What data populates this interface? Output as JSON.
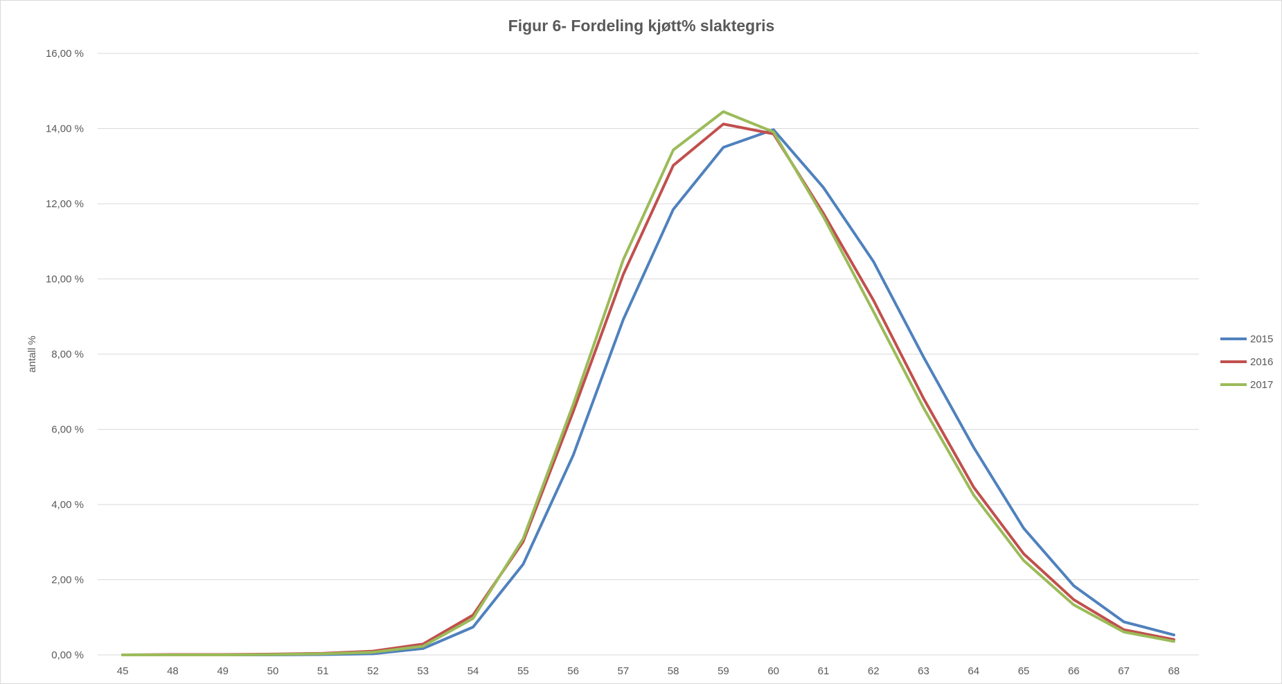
{
  "chart_data": {
    "type": "line",
    "title": "Figur 6- Fordeling kjøtt% slaktegris",
    "xlabel": "",
    "ylabel": "antall %",
    "categories": [
      "45",
      "48",
      "49",
      "50",
      "51",
      "52",
      "53",
      "54",
      "55",
      "56",
      "57",
      "58",
      "59",
      "60",
      "61",
      "62",
      "63",
      "64",
      "65",
      "66",
      "67",
      "68"
    ],
    "ylim": [
      0,
      16
    ],
    "yticks": [
      0,
      2,
      4,
      6,
      8,
      10,
      12,
      14,
      16
    ],
    "ytick_labels": [
      "0,00 %",
      "2,00 %",
      "4,00 %",
      "6,00 %",
      "8,00 %",
      "10,00 %",
      "12,00 %",
      "14,00 %",
      "16,00 %"
    ],
    "grid": true,
    "legend_position": "right",
    "series": [
      {
        "name": "2015",
        "color": "#4f81bd",
        "values": [
          0.0,
          0.0,
          0.0,
          0.0,
          0.01,
          0.03,
          0.17,
          0.74,
          2.41,
          5.31,
          8.92,
          11.85,
          13.5,
          13.97,
          12.43,
          10.46,
          7.92,
          5.52,
          3.37,
          1.84,
          0.88,
          0.53
        ]
      },
      {
        "name": "2016",
        "color": "#c0504d",
        "values": [
          0.0,
          0.01,
          0.01,
          0.02,
          0.04,
          0.1,
          0.29,
          1.06,
          3.01,
          6.47,
          10.12,
          13.02,
          14.12,
          13.86,
          11.74,
          9.43,
          6.82,
          4.46,
          2.69,
          1.47,
          0.67,
          0.41
        ]
      },
      {
        "name": "2017",
        "color": "#9bbb59",
        "values": [
          0.0,
          0.0,
          0.0,
          0.01,
          0.03,
          0.07,
          0.23,
          0.97,
          3.09,
          6.66,
          10.51,
          13.43,
          14.45,
          13.91,
          11.65,
          9.13,
          6.57,
          4.25,
          2.51,
          1.33,
          0.61,
          0.36
        ]
      }
    ]
  }
}
